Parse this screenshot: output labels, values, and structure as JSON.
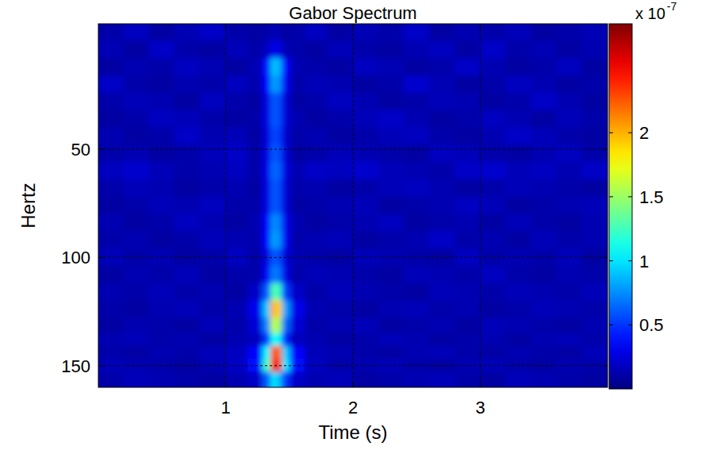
{
  "chart_data": {
    "type": "heatmap",
    "title": "Gabor Spectrum",
    "x_label": "Time (s)",
    "y_label": "Hertz",
    "x": [
      0.1,
      0.3,
      0.5,
      0.7,
      0.9,
      1.1,
      1.25,
      1.33,
      1.38,
      1.42,
      1.47,
      1.55,
      1.7,
      1.9,
      2.1,
      2.3,
      2.5,
      2.7,
      2.9,
      3.1,
      3.3,
      3.5,
      3.7,
      3.9
    ],
    "y": [
      -4,
      4,
      12,
      20,
      28,
      36,
      44,
      52,
      60,
      68,
      76,
      84,
      92,
      100,
      108,
      116,
      124,
      132,
      138,
      144,
      150,
      156
    ],
    "cells": [
      [
        0.12,
        0.18,
        0.1,
        0.15,
        0.2,
        0.12,
        0.1,
        0.12,
        0.15,
        0.14,
        0.1,
        0.12,
        0.18,
        0.1,
        0.15,
        0.12,
        0.2,
        0.1,
        0.14,
        0.12,
        0.16,
        0.1,
        0.12,
        0.15
      ],
      [
        0.15,
        0.1,
        0.2,
        0.12,
        0.1,
        0.16,
        0.12,
        0.18,
        0.3,
        0.28,
        0.15,
        0.12,
        0.1,
        0.16,
        0.12,
        0.1,
        0.14,
        0.18,
        0.1,
        0.2,
        0.12,
        0.15,
        0.1,
        0.14
      ],
      [
        0.1,
        0.14,
        0.12,
        0.18,
        0.15,
        0.1,
        0.15,
        0.4,
        0.9,
        0.86,
        0.36,
        0.14,
        0.12,
        0.1,
        0.18,
        0.15,
        0.1,
        0.12,
        0.2,
        0.14,
        0.1,
        0.12,
        0.18,
        0.1
      ],
      [
        0.2,
        0.12,
        0.1,
        0.14,
        0.12,
        0.18,
        0.13,
        0.36,
        0.8,
        0.76,
        0.32,
        0.12,
        0.16,
        0.14,
        0.1,
        0.12,
        0.22,
        0.15,
        0.1,
        0.12,
        0.18,
        0.14,
        0.1,
        0.12
      ],
      [
        0.12,
        0.16,
        0.14,
        0.1,
        0.18,
        0.12,
        0.1,
        0.27,
        0.6,
        0.57,
        0.24,
        0.1,
        0.12,
        0.18,
        0.14,
        0.1,
        0.12,
        0.16,
        0.14,
        0.1,
        0.12,
        0.2,
        0.14,
        0.1
      ],
      [
        0.1,
        0.12,
        0.18,
        0.16,
        0.12,
        0.1,
        0.12,
        0.27,
        0.6,
        0.57,
        0.24,
        0.14,
        0.1,
        0.12,
        0.16,
        0.2,
        0.14,
        0.1,
        0.12,
        0.18,
        0.14,
        0.1,
        0.16,
        0.12
      ],
      [
        0.14,
        0.1,
        0.12,
        0.2,
        0.14,
        0.16,
        0.1,
        0.25,
        0.55,
        0.52,
        0.22,
        0.12,
        0.14,
        0.1,
        0.12,
        0.16,
        0.18,
        0.12,
        0.1,
        0.14,
        0.2,
        0.16,
        0.12,
        0.1
      ],
      [
        0.12,
        0.14,
        0.1,
        0.12,
        0.16,
        0.2,
        0.12,
        0.27,
        0.6,
        0.57,
        0.24,
        0.1,
        0.12,
        0.16,
        0.14,
        0.12,
        0.1,
        0.18,
        0.16,
        0.12,
        0.1,
        0.14,
        0.18,
        0.12
      ],
      [
        0.18,
        0.22,
        0.16,
        0.12,
        0.14,
        0.18,
        0.12,
        0.29,
        0.65,
        0.62,
        0.26,
        0.14,
        0.2,
        0.18,
        0.22,
        0.16,
        0.14,
        0.12,
        0.2,
        0.22,
        0.16,
        0.18,
        0.14,
        0.2
      ],
      [
        0.12,
        0.16,
        0.14,
        0.1,
        0.12,
        0.14,
        0.1,
        0.27,
        0.6,
        0.57,
        0.24,
        0.12,
        0.14,
        0.1,
        0.12,
        0.16,
        0.18,
        0.14,
        0.1,
        0.12,
        0.16,
        0.14,
        0.12,
        0.1
      ],
      [
        0.1,
        0.12,
        0.16,
        0.14,
        0.18,
        0.12,
        0.12,
        0.27,
        0.6,
        0.57,
        0.24,
        0.1,
        0.12,
        0.14,
        0.16,
        0.1,
        0.12,
        0.14,
        0.18,
        0.16,
        0.1,
        0.12,
        0.14,
        0.16
      ],
      [
        0.14,
        0.1,
        0.12,
        0.18,
        0.14,
        0.1,
        0.14,
        0.34,
        0.75,
        0.71,
        0.3,
        0.14,
        0.1,
        0.12,
        0.14,
        0.18,
        0.1,
        0.12,
        0.14,
        0.1,
        0.16,
        0.12,
        0.1,
        0.14
      ],
      [
        0.12,
        0.14,
        0.1,
        0.12,
        0.16,
        0.14,
        0.13,
        0.36,
        0.8,
        0.76,
        0.32,
        0.12,
        0.14,
        0.16,
        0.1,
        0.12,
        0.14,
        0.2,
        0.12,
        0.14,
        0.1,
        0.16,
        0.12,
        0.14
      ],
      [
        0.16,
        0.12,
        0.14,
        0.1,
        0.12,
        0.18,
        0.12,
        0.27,
        0.6,
        0.57,
        0.24,
        0.14,
        0.12,
        0.1,
        0.16,
        0.14,
        0.12,
        0.1,
        0.18,
        0.12,
        0.14,
        0.12,
        0.16,
        0.1
      ],
      [
        0.1,
        0.14,
        0.12,
        0.16,
        0.1,
        0.12,
        0.12,
        0.32,
        0.7,
        0.67,
        0.28,
        0.12,
        0.16,
        0.14,
        0.12,
        0.1,
        0.16,
        0.14,
        0.12,
        0.18,
        0.12,
        0.1,
        0.14,
        0.12
      ],
      [
        0.14,
        0.12,
        0.16,
        0.12,
        0.14,
        0.1,
        0.2,
        0.59,
        1.3,
        1.24,
        0.52,
        0.2,
        0.12,
        0.16,
        0.14,
        0.12,
        0.1,
        0.16,
        0.14,
        0.12,
        0.16,
        0.14,
        0.12,
        0.16
      ],
      [
        0.12,
        0.1,
        0.14,
        0.16,
        0.12,
        0.14,
        0.3,
        0.9,
        2.0,
        1.9,
        0.8,
        0.3,
        0.14,
        0.12,
        0.1,
        0.14,
        0.16,
        0.12,
        0.14,
        0.1,
        0.12,
        0.16,
        0.14,
        0.12
      ],
      [
        0.1,
        0.14,
        0.12,
        0.1,
        0.16,
        0.12,
        0.24,
        0.72,
        1.6,
        1.52,
        0.64,
        0.24,
        0.12,
        0.14,
        0.16,
        0.1,
        0.12,
        0.14,
        0.1,
        0.16,
        0.14,
        0.12,
        0.1,
        0.14
      ],
      [
        0.14,
        0.16,
        0.12,
        0.14,
        0.1,
        0.14,
        0.17,
        0.5,
        1.1,
        1.05,
        0.44,
        0.17,
        0.14,
        0.1,
        0.12,
        0.16,
        0.14,
        0.1,
        0.12,
        0.14,
        0.1,
        0.14,
        0.16,
        0.12
      ],
      [
        0.12,
        0.1,
        0.14,
        0.12,
        0.16,
        0.18,
        0.35,
        1.04,
        2.3,
        2.19,
        0.92,
        0.35,
        0.16,
        0.14,
        0.12,
        0.1,
        0.14,
        0.16,
        0.12,
        0.1,
        0.14,
        0.12,
        0.1,
        0.16
      ],
      [
        0.16,
        0.14,
        0.12,
        0.1,
        0.14,
        0.2,
        0.4,
        1.2,
        2.5,
        2.4,
        1.0,
        0.4,
        0.18,
        0.12,
        0.14,
        0.16,
        0.12,
        0.1,
        0.14,
        0.16,
        0.12,
        0.1,
        0.14,
        0.12
      ],
      [
        0.12,
        0.16,
        0.14,
        0.12,
        0.1,
        0.14,
        0.2,
        0.6,
        1.0,
        0.9,
        0.5,
        0.2,
        0.14,
        0.16,
        0.1,
        0.12,
        0.14,
        0.16,
        0.12,
        0.1,
        0.16,
        0.14,
        0.12,
        0.1
      ]
    ],
    "xlim": [
      0,
      4
    ],
    "ylim": [
      -8,
      160
    ],
    "xticks": [
      1,
      2,
      3
    ],
    "yticks": [
      50,
      100,
      150
    ],
    "grid": true,
    "colorbar": {
      "lim": [
        0,
        2.85
      ],
      "ticks": [
        0.5,
        1,
        1.5,
        2
      ],
      "multiplier": "x 10",
      "exponent": "-7"
    }
  }
}
